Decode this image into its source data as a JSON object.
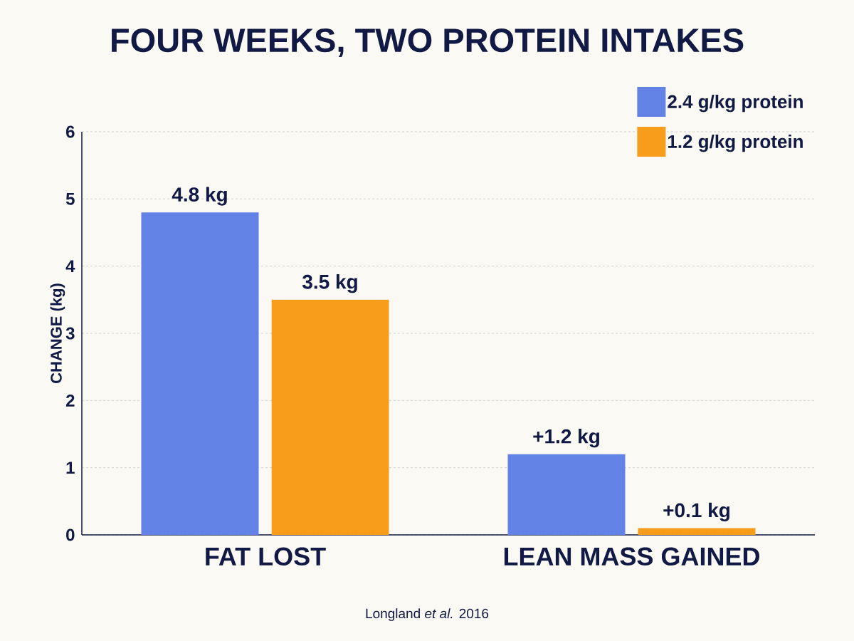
{
  "chart_data": {
    "type": "bar",
    "title": "FOUR WEEKS, TWO PROTEIN INTAKES",
    "ylabel": "CHANGE (kg)",
    "categories": [
      "FAT LOST",
      "LEAN MASS GAINED"
    ],
    "series": [
      {
        "name": "2.4 g/kg protein",
        "color": "#6282e6",
        "values": [
          4.8,
          1.2
        ],
        "value_labels": [
          "4.8 kg",
          "+1.2 kg"
        ]
      },
      {
        "name": "1.2 g/kg protein",
        "color": "#f89c1c",
        "values": [
          3.5,
          0.1
        ],
        "value_labels": [
          "3.5 kg",
          "+0.1 kg"
        ]
      }
    ],
    "ylim": [
      0,
      6
    ],
    "yticks": [
      0,
      1,
      2,
      3,
      4,
      5,
      6
    ],
    "grid": "y",
    "legend": "top right",
    "annotations": [
      "Longland *et al.* 2016"
    ]
  }
}
